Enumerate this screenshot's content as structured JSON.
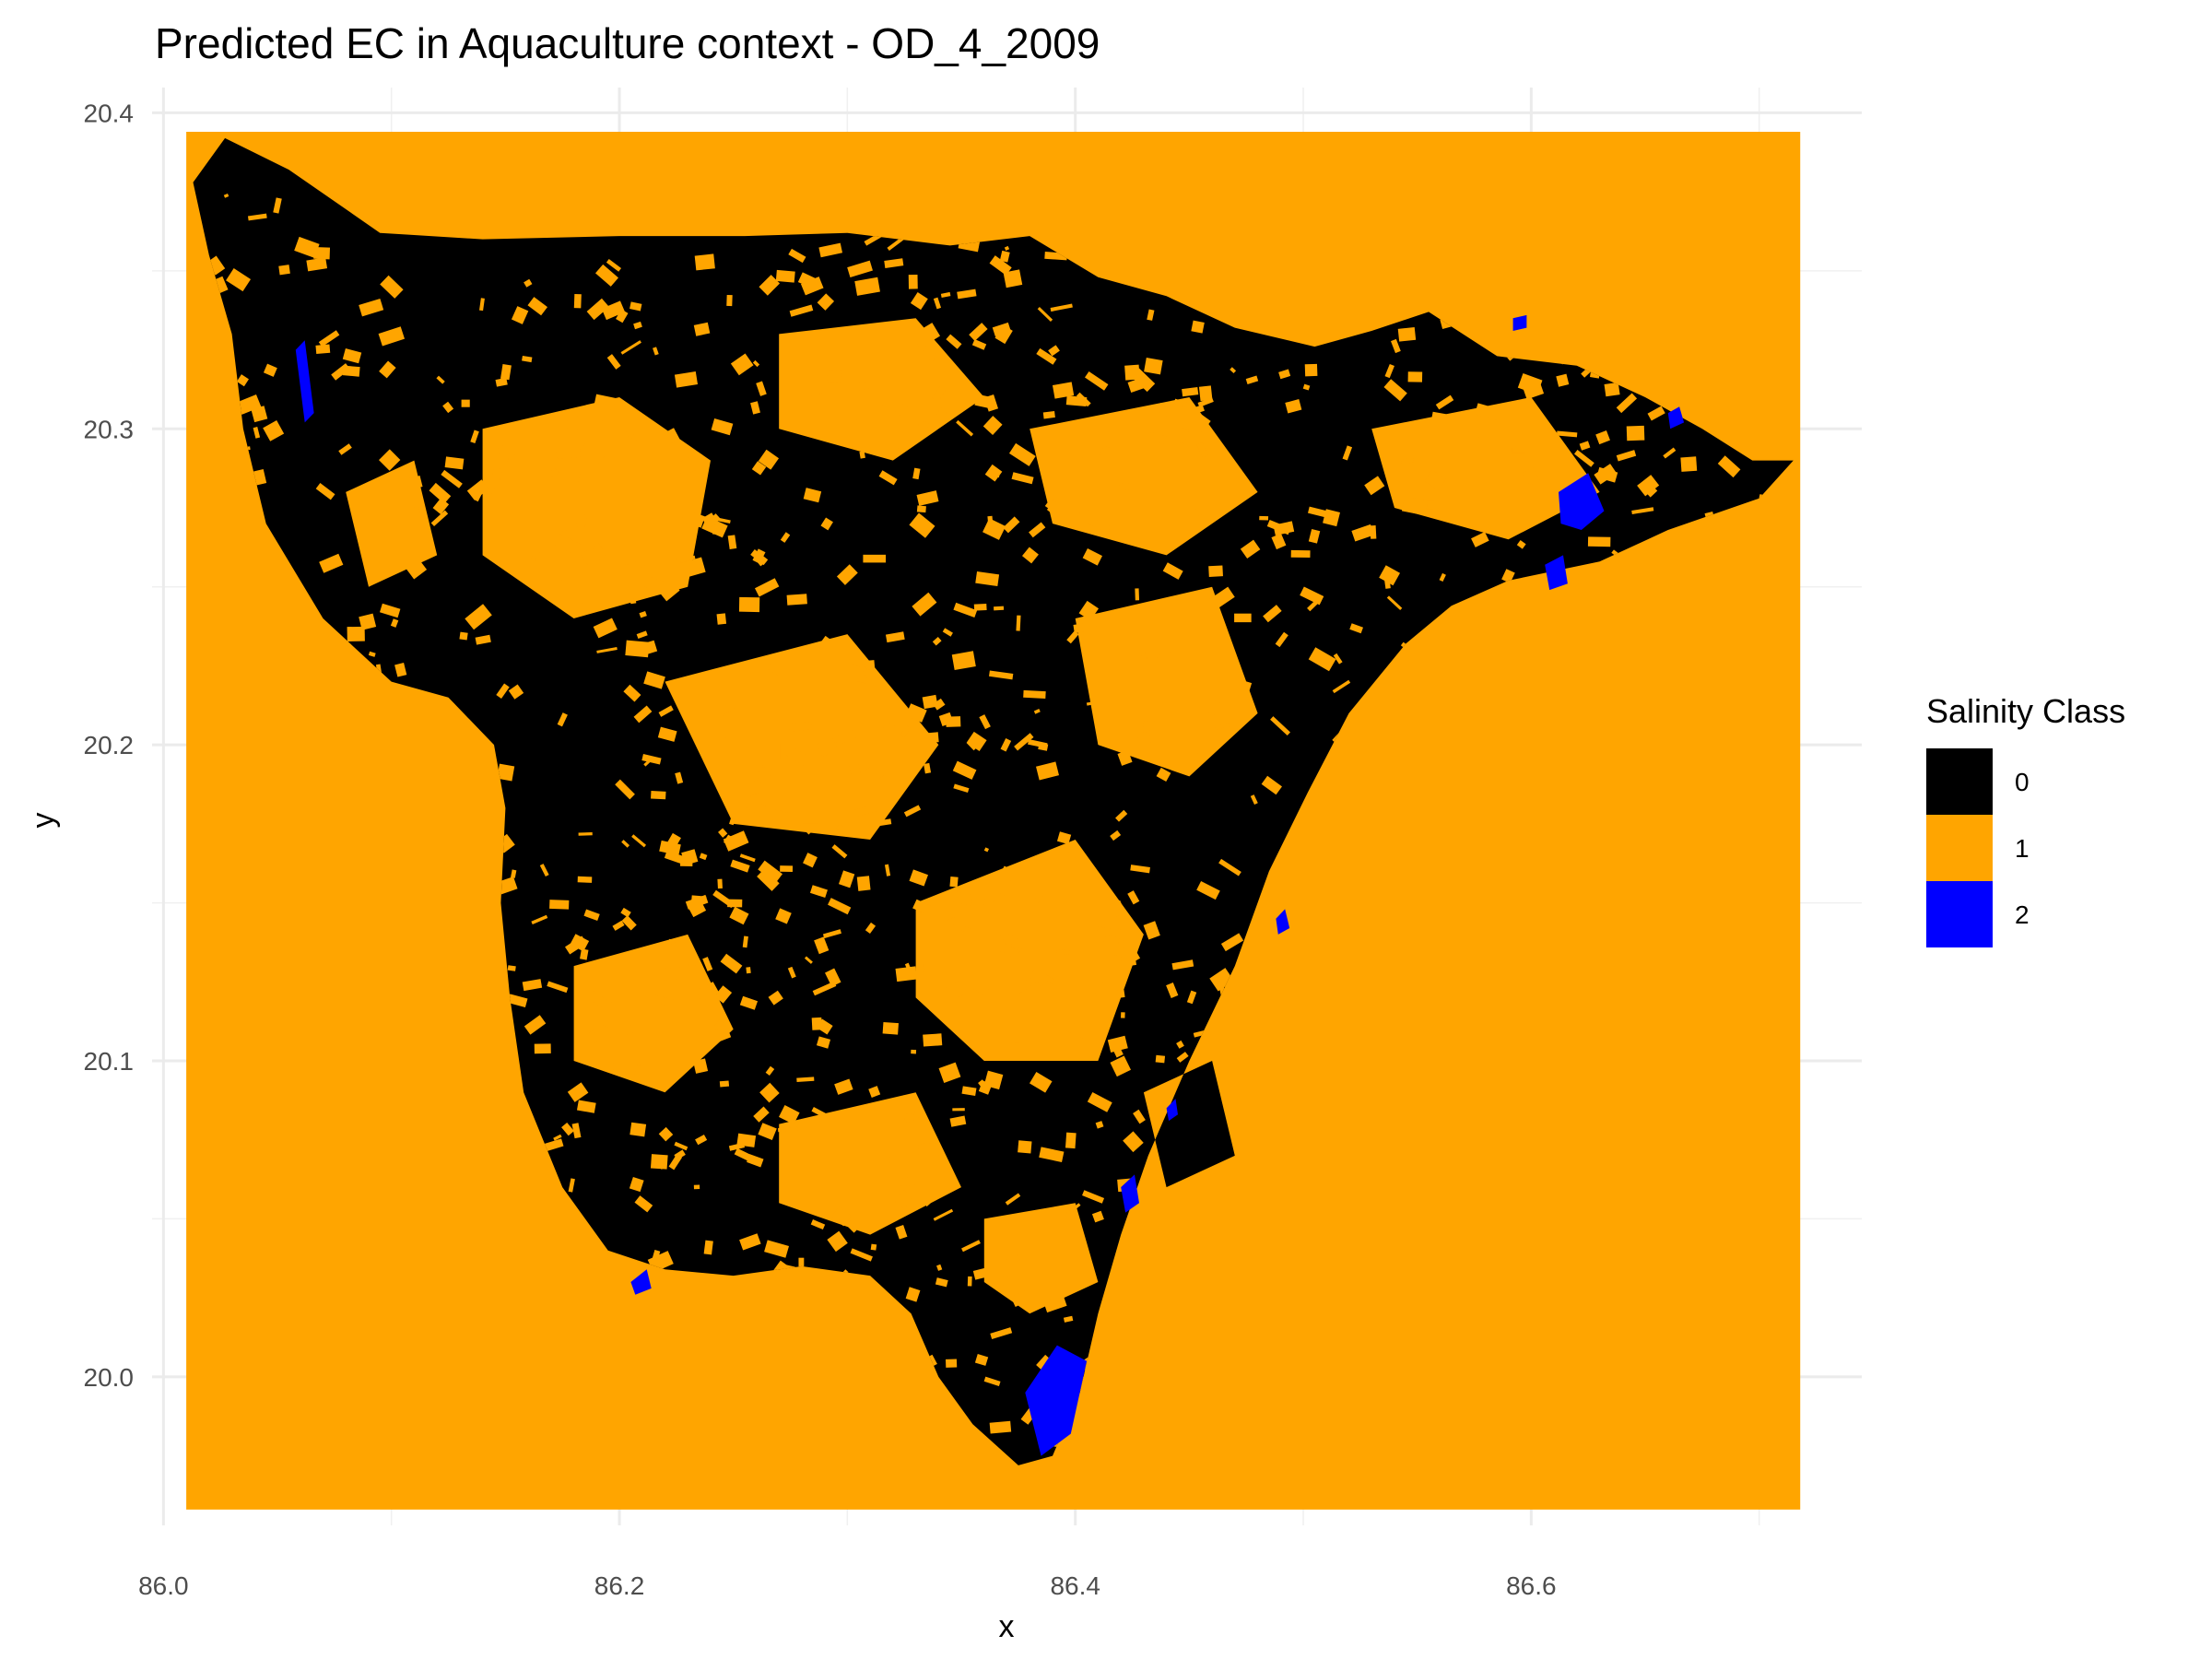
{
  "chart_data": {
    "type": "heatmap",
    "title": "Predicted EC in Aquaculture context - OD_4_2009",
    "xlabel": "x",
    "ylabel": "y",
    "xlim": [
      85.995,
      86.745
    ],
    "ylim": [
      19.953,
      20.408
    ],
    "raster_extent": {
      "x": [
        86.01,
        86.718
      ],
      "y": [
        19.958,
        20.394
      ]
    },
    "x_ticks": [
      86.0,
      86.2,
      86.4,
      86.6
    ],
    "x_tick_labels": [
      "86.0",
      "86.2",
      "86.4",
      "86.6"
    ],
    "y_ticks": [
      20.0,
      20.1,
      20.2,
      20.3,
      20.4
    ],
    "y_tick_labels": [
      "20.0",
      "20.1",
      "20.2",
      "20.3",
      "20.4"
    ],
    "grid": true,
    "legend": {
      "title": "Salinity Class",
      "position": "right",
      "entries": [
        {
          "label": "0",
          "color": "#000000"
        },
        {
          "label": "1",
          "color": "#FFA500"
        },
        {
          "label": "2",
          "color": "#0000FF"
        }
      ]
    },
    "background_class": "1",
    "region_class": "0",
    "region_outline": [
      [
        86.013,
        20.378
      ],
      [
        86.027,
        20.392
      ],
      [
        86.055,
        20.382
      ],
      [
        86.095,
        20.362
      ],
      [
        86.14,
        20.36
      ],
      [
        86.2,
        20.361
      ],
      [
        86.255,
        20.361
      ],
      [
        86.3,
        20.362
      ],
      [
        86.345,
        20.358
      ],
      [
        86.38,
        20.361
      ],
      [
        86.41,
        20.348
      ],
      [
        86.44,
        20.342
      ],
      [
        86.47,
        20.332
      ],
      [
        86.505,
        20.326
      ],
      [
        86.53,
        20.331
      ],
      [
        86.555,
        20.337
      ],
      [
        86.585,
        20.323
      ],
      [
        86.62,
        20.32
      ],
      [
        86.65,
        20.31
      ],
      [
        86.675,
        20.3
      ],
      [
        86.697,
        20.29
      ],
      [
        86.715,
        20.29
      ],
      [
        86.7,
        20.278
      ],
      [
        86.66,
        20.268
      ],
      [
        86.63,
        20.258
      ],
      [
        86.59,
        20.252
      ],
      [
        86.565,
        20.244
      ],
      [
        86.545,
        20.232
      ],
      [
        86.52,
        20.21
      ],
      [
        86.502,
        20.185
      ],
      [
        86.485,
        20.16
      ],
      [
        86.47,
        20.13
      ],
      [
        86.45,
        20.1
      ],
      [
        86.432,
        20.07
      ],
      [
        86.42,
        20.045
      ],
      [
        86.41,
        20.02
      ],
      [
        86.402,
        19.995
      ],
      [
        86.39,
        19.975
      ],
      [
        86.375,
        19.972
      ],
      [
        86.355,
        19.985
      ],
      [
        86.34,
        20.0
      ],
      [
        86.328,
        20.02
      ],
      [
        86.31,
        20.032
      ],
      [
        86.28,
        20.035
      ],
      [
        86.25,
        20.032
      ],
      [
        86.22,
        20.034
      ],
      [
        86.195,
        20.04
      ],
      [
        86.175,
        20.06
      ],
      [
        86.158,
        20.09
      ],
      [
        86.152,
        20.12
      ],
      [
        86.148,
        20.15
      ],
      [
        86.15,
        20.18
      ],
      [
        86.145,
        20.2
      ],
      [
        86.125,
        20.215
      ],
      [
        86.1,
        20.22
      ],
      [
        86.07,
        20.24
      ],
      [
        86.045,
        20.27
      ],
      [
        86.035,
        20.3
      ],
      [
        86.03,
        20.33
      ],
      [
        86.02,
        20.355
      ]
    ],
    "region_holes": [
      [
        [
          86.14,
          20.3
        ],
        [
          86.2,
          20.31
        ],
        [
          86.24,
          20.29
        ],
        [
          86.23,
          20.25
        ],
        [
          86.18,
          20.24
        ],
        [
          86.14,
          20.26
        ]
      ],
      [
        [
          86.27,
          20.33
        ],
        [
          86.33,
          20.335
        ],
        [
          86.36,
          20.31
        ],
        [
          86.32,
          20.29
        ],
        [
          86.27,
          20.3
        ]
      ],
      [
        [
          86.38,
          20.3
        ],
        [
          86.45,
          20.31
        ],
        [
          86.48,
          20.28
        ],
        [
          86.44,
          20.26
        ],
        [
          86.39,
          20.27
        ]
      ],
      [
        [
          86.22,
          20.22
        ],
        [
          86.3,
          20.235
        ],
        [
          86.34,
          20.2
        ],
        [
          86.31,
          20.17
        ],
        [
          86.25,
          20.175
        ]
      ],
      [
        [
          86.33,
          20.15
        ],
        [
          86.4,
          20.17
        ],
        [
          86.43,
          20.14
        ],
        [
          86.41,
          20.1
        ],
        [
          86.36,
          20.1
        ],
        [
          86.33,
          20.12
        ]
      ],
      [
        [
          86.4,
          20.24
        ],
        [
          86.46,
          20.25
        ],
        [
          86.48,
          20.21
        ],
        [
          86.45,
          20.19
        ],
        [
          86.41,
          20.2
        ]
      ],
      [
        [
          86.18,
          20.13
        ],
        [
          86.23,
          20.14
        ],
        [
          86.25,
          20.11
        ],
        [
          86.22,
          20.09
        ],
        [
          86.18,
          20.1
        ]
      ],
      [
        [
          86.27,
          20.08
        ],
        [
          86.33,
          20.09
        ],
        [
          86.35,
          20.06
        ],
        [
          86.31,
          20.045
        ],
        [
          86.27,
          20.055
        ]
      ],
      [
        [
          86.43,
          20.09
        ],
        [
          86.46,
          20.1
        ],
        [
          86.47,
          20.07
        ],
        [
          86.44,
          20.06
        ]
      ],
      [
        [
          86.36,
          20.05
        ],
        [
          86.4,
          20.055
        ],
        [
          86.41,
          20.03
        ],
        [
          86.38,
          20.02
        ],
        [
          86.36,
          20.03
        ]
      ],
      [
        [
          86.53,
          20.3
        ],
        [
          86.6,
          20.31
        ],
        [
          86.63,
          20.28
        ],
        [
          86.59,
          20.265
        ],
        [
          86.54,
          20.275
        ]
      ],
      [
        [
          86.08,
          20.28
        ],
        [
          86.11,
          20.29
        ],
        [
          86.12,
          20.26
        ],
        [
          86.09,
          20.25
        ]
      ]
    ],
    "class2_patches": [
      [
        [
          86.058,
          20.325
        ],
        [
          86.062,
          20.328
        ],
        [
          86.066,
          20.305
        ],
        [
          86.062,
          20.302
        ]
      ],
      [
        [
          86.612,
          20.28
        ],
        [
          86.625,
          20.286
        ],
        [
          86.632,
          20.274
        ],
        [
          86.622,
          20.268
        ],
        [
          86.613,
          20.27
        ]
      ],
      [
        [
          86.606,
          20.257
        ],
        [
          86.614,
          20.26
        ],
        [
          86.616,
          20.251
        ],
        [
          86.608,
          20.249
        ]
      ],
      [
        [
          86.592,
          20.335
        ],
        [
          86.598,
          20.336
        ],
        [
          86.598,
          20.332
        ],
        [
          86.592,
          20.331
        ]
      ],
      [
        [
          86.66,
          20.305
        ],
        [
          86.665,
          20.307
        ],
        [
          86.667,
          20.302
        ],
        [
          86.661,
          20.3
        ]
      ],
      [
        [
          86.378,
          19.995
        ],
        [
          86.392,
          20.01
        ],
        [
          86.405,
          20.005
        ],
        [
          86.398,
          19.982
        ],
        [
          86.385,
          19.975
        ]
      ],
      [
        [
          86.42,
          20.06
        ],
        [
          86.426,
          20.064
        ],
        [
          86.428,
          20.055
        ],
        [
          86.422,
          20.052
        ]
      ],
      [
        [
          86.205,
          20.03
        ],
        [
          86.212,
          20.034
        ],
        [
          86.214,
          20.028
        ],
        [
          86.207,
          20.026
        ]
      ],
      [
        [
          86.488,
          20.145
        ],
        [
          86.492,
          20.148
        ],
        [
          86.494,
          20.142
        ],
        [
          86.489,
          20.14
        ]
      ],
      [
        [
          86.44,
          20.085
        ],
        [
          86.444,
          20.088
        ],
        [
          86.445,
          20.083
        ],
        [
          86.441,
          20.081
        ]
      ]
    ]
  }
}
